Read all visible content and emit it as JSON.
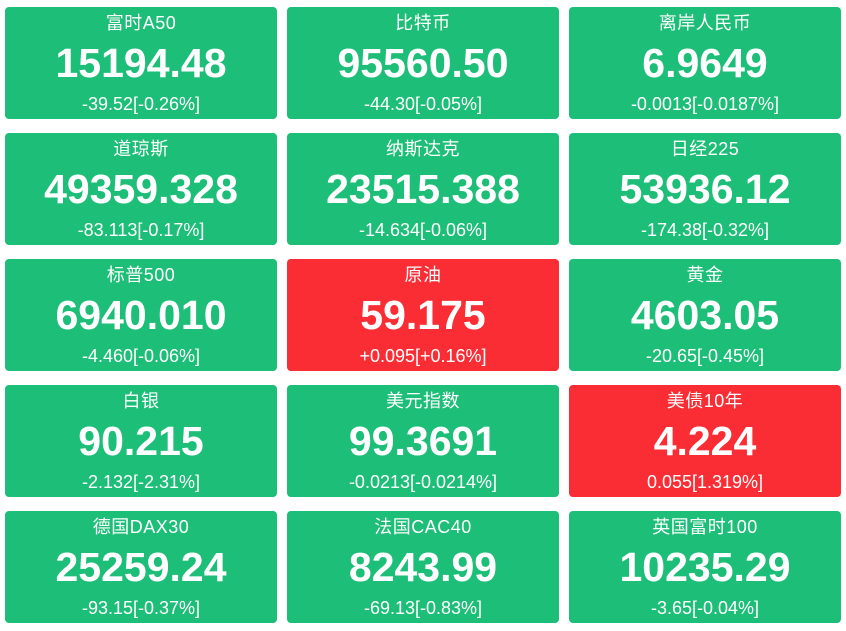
{
  "colors": {
    "down_green": "#1dbe78",
    "up_red": "#fa2d35",
    "text": "#ffffff",
    "page_background": "#ffffff"
  },
  "tiles": [
    {
      "name": "富时A50",
      "value": "15194.48",
      "change": "-39.52[-0.26%]",
      "direction": "down"
    },
    {
      "name": "比特币",
      "value": "95560.50",
      "change": "-44.30[-0.05%]",
      "direction": "down"
    },
    {
      "name": "离岸人民币",
      "value": "6.9649",
      "change": "-0.0013[-0.0187%]",
      "direction": "down"
    },
    {
      "name": "道琼斯",
      "value": "49359.328",
      "change": "-83.113[-0.17%]",
      "direction": "down"
    },
    {
      "name": "纳斯达克",
      "value": "23515.388",
      "change": "-14.634[-0.06%]",
      "direction": "down"
    },
    {
      "name": "日经225",
      "value": "53936.12",
      "change": "-174.38[-0.32%]",
      "direction": "down"
    },
    {
      "name": "标普500",
      "value": "6940.010",
      "change": "-4.460[-0.06%]",
      "direction": "down"
    },
    {
      "name": "原油",
      "value": "59.175",
      "change": "+0.095[+0.16%]",
      "direction": "up"
    },
    {
      "name": "黄金",
      "value": "4603.05",
      "change": "-20.65[-0.45%]",
      "direction": "down"
    },
    {
      "name": "白银",
      "value": "90.215",
      "change": "-2.132[-2.31%]",
      "direction": "down"
    },
    {
      "name": "美元指数",
      "value": "99.3691",
      "change": "-0.0213[-0.0214%]",
      "direction": "down"
    },
    {
      "name": "美债10年",
      "value": "4.224",
      "change": "0.055[1.319%]",
      "direction": "up"
    },
    {
      "name": "德国DAX30",
      "value": "25259.24",
      "change": "-93.15[-0.37%]",
      "direction": "down"
    },
    {
      "name": "法国CAC40",
      "value": "8243.99",
      "change": "-69.13[-0.83%]",
      "direction": "down"
    },
    {
      "name": "英国富时100",
      "value": "10235.29",
      "change": "-3.65[-0.04%]",
      "direction": "down"
    }
  ]
}
